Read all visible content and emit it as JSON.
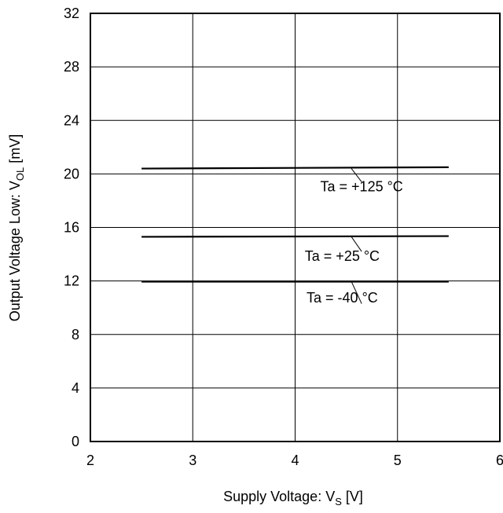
{
  "chart_data": {
    "type": "line",
    "title": "",
    "xlabel": {
      "main": "Supply Voltage: V",
      "sub": "S",
      "unit": " [V]"
    },
    "ylabel": {
      "main": "Output Voltage Low: V",
      "sub": "OL",
      "unit": " [mV]"
    },
    "xlim": [
      2,
      6
    ],
    "ylim": [
      0,
      32
    ],
    "x_ticks": [
      2,
      3,
      4,
      5,
      6
    ],
    "y_ticks": [
      0,
      4,
      8,
      12,
      16,
      20,
      24,
      28,
      32
    ],
    "grid": true,
    "legend": "none",
    "line_color": "#000000",
    "series": [
      {
        "name": "Ta = +125 °C",
        "x": [
          2.5,
          5.5
        ],
        "y": [
          20.4,
          20.5
        ],
        "label_at": [
          4.65,
          18.7
        ],
        "leader_from": [
          4.55,
          20.4
        ],
        "leader_to": [
          4.65,
          19.4
        ]
      },
      {
        "name": "Ta = +25 °C",
        "x": [
          2.5,
          5.5
        ],
        "y": [
          15.3,
          15.35
        ],
        "label_at": [
          4.46,
          13.5
        ],
        "leader_from": [
          4.55,
          15.3
        ],
        "leader_to": [
          4.65,
          14.2
        ]
      },
      {
        "name": "Ta = -40 °C",
        "x": [
          2.5,
          5.5
        ],
        "y": [
          11.95,
          11.95
        ],
        "label_at": [
          4.46,
          10.4
        ],
        "leader_from": [
          4.55,
          11.95
        ],
        "leader_to": [
          4.65,
          10.3
        ]
      }
    ]
  }
}
